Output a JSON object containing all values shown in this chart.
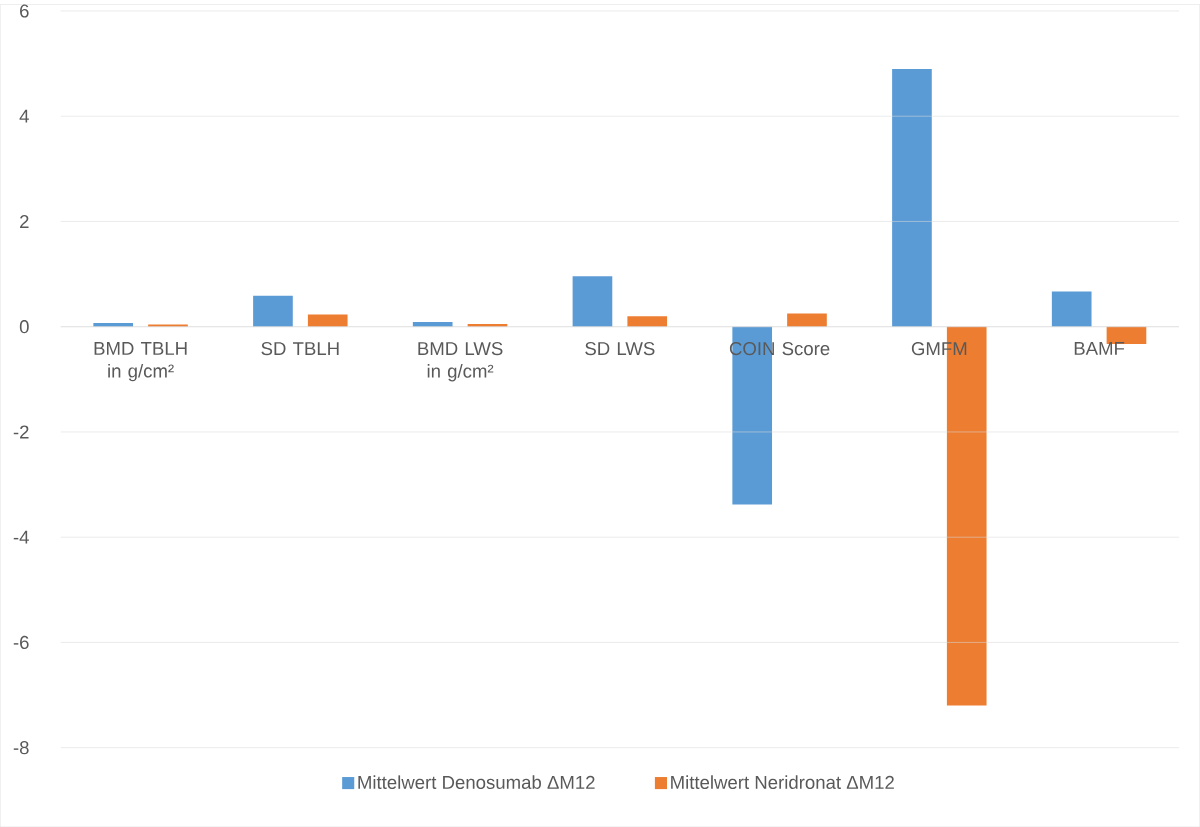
{
  "chart_data": {
    "type": "bar",
    "categories": [
      "BMD TBLH in g/cm²",
      "SD TBLH",
      "BMD LWS in g/cm²",
      "SD LWS",
      "COIN Score",
      "GMFM",
      "BAMF"
    ],
    "series": [
      {
        "name": "Mittelwert Denosumab ΔM12",
        "color": "#5b9bd5",
        "values": [
          0.07,
          0.59,
          0.09,
          0.96,
          -3.38,
          4.9,
          0.67
        ]
      },
      {
        "name": "Mittelwert Neridronat ΔM12",
        "color": "#ed7d31",
        "values": [
          0.04,
          0.23,
          0.05,
          0.2,
          0.25,
          -7.2,
          -0.33
        ]
      }
    ],
    "ylim": [
      -8,
      6
    ],
    "yticks": [
      -8,
      -6,
      -4,
      -2,
      0,
      2,
      4,
      6
    ],
    "grid": "y",
    "legend": "bottom"
  }
}
